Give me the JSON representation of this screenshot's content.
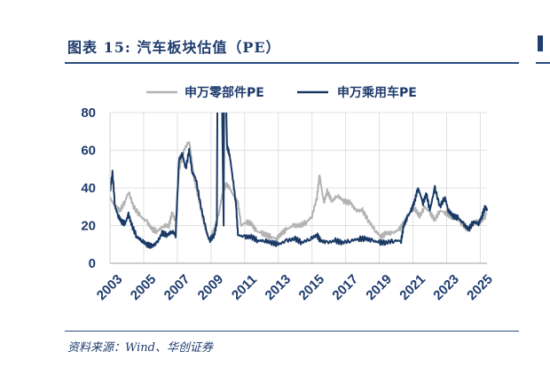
{
  "title": "图表 15:  汽车板块估值（PE）",
  "source": "资料来源：Wind、华创证券",
  "chart_data": {
    "type": "line",
    "title": "汽车板块估值（PE）",
    "xlabel": "",
    "ylabel": "",
    "ylim": [
      0,
      80
    ],
    "xlim": [
      2003,
      2025.4
    ],
    "yticks": [
      0,
      20,
      40,
      60,
      80
    ],
    "xticks": [
      "2003",
      "2005",
      "2007",
      "2009",
      "2011",
      "2013",
      "2015",
      "2017",
      "2019",
      "2021",
      "2023",
      "2025"
    ],
    "grid": true,
    "legend": "top",
    "series": [
      {
        "name": "申万零部件PE",
        "color": "#b3b3b3",
        "x": [
          2003.0,
          2003.3,
          2003.6,
          2003.9,
          2004.1,
          2004.4,
          2004.8,
          2005.2,
          2005.5,
          2005.8,
          2006.2,
          2006.5,
          2006.7,
          2006.9,
          2007.1,
          2007.4,
          2007.7,
          2008.0,
          2008.3,
          2008.6,
          2008.9,
          2009.2,
          2009.5,
          2009.7,
          2009.9,
          2010.1,
          2010.4,
          2010.6,
          2010.8,
          2011.1,
          2011.4,
          2011.7,
          2012.0,
          2012.3,
          2012.6,
          2012.9,
          2013.2,
          2013.5,
          2013.9,
          2014.3,
          2014.7,
          2015.0,
          2015.3,
          2015.45,
          2015.7,
          2015.9,
          2016.2,
          2016.5,
          2016.9,
          2017.3,
          2017.6,
          2018.0,
          2018.4,
          2018.8,
          2019.1,
          2019.4,
          2019.8,
          2020.2,
          2020.5,
          2020.8,
          2021.1,
          2021.4,
          2021.7,
          2022.0,
          2022.3,
          2022.6,
          2022.9,
          2023.2,
          2023.5,
          2023.8,
          2024.1,
          2024.4,
          2024.7,
          2025.0,
          2025.4
        ],
        "y": [
          35,
          30,
          28,
          33,
          38,
          30,
          25,
          22,
          18,
          17,
          20,
          20,
          27,
          22,
          50,
          60,
          65,
          45,
          33,
          20,
          12,
          18,
          28,
          38,
          42,
          40,
          35,
          32,
          20,
          22,
          21,
          17,
          16,
          15,
          14,
          13,
          16,
          18,
          20,
          20,
          22,
          25,
          35,
          47,
          32,
          38,
          33,
          36,
          33,
          32,
          28,
          28,
          22,
          17,
          14,
          16,
          16,
          18,
          22,
          27,
          29,
          25,
          30,
          27,
          23,
          28,
          27,
          25,
          24,
          22,
          19,
          18,
          22,
          22,
          26
        ]
      },
      {
        "name": "申万乘用车PE",
        "color": "#1a3a66",
        "x": [
          2003.0,
          2003.15,
          2003.3,
          2003.5,
          2003.7,
          2003.9,
          2004.1,
          2004.3,
          2004.6,
          2004.9,
          2005.2,
          2005.5,
          2005.8,
          2006.1,
          2006.4,
          2006.7,
          2006.9,
          2007.1,
          2007.3,
          2007.5,
          2007.7,
          2007.9,
          2008.1,
          2008.4,
          2008.7,
          2008.9,
          2009.2,
          2009.35,
          2009.4,
          2009.6,
          2009.75,
          2009.8,
          2009.95,
          2010.1,
          2010.3,
          2010.5,
          2010.6,
          2011.0,
          2011.4,
          2011.8,
          2012.2,
          2012.6,
          2013.0,
          2013.5,
          2014.0,
          2014.4,
          2014.9,
          2015.3,
          2015.5,
          2015.9,
          2016.4,
          2016.8,
          2017.3,
          2017.8,
          2018.2,
          2018.6,
          2019.0,
          2019.4,
          2019.9,
          2020.3,
          2020.45,
          2020.7,
          2020.9,
          2021.1,
          2021.3,
          2021.6,
          2021.8,
          2022.0,
          2022.3,
          2022.6,
          2022.9,
          2023.1,
          2023.4,
          2023.7,
          2024.0,
          2024.3,
          2024.6,
          2024.9,
          2025.1,
          2025.3,
          2025.4
        ],
        "y": [
          38,
          48,
          30,
          25,
          22,
          21,
          26,
          20,
          14,
          12,
          10,
          9,
          11,
          16,
          15,
          17,
          15,
          55,
          58,
          50,
          60,
          48,
          45,
          30,
          18,
          12,
          15,
          22,
          130,
          130,
          20,
          130,
          62,
          58,
          45,
          30,
          15,
          14,
          14,
          12,
          12,
          11,
          10,
          12,
          13,
          11,
          13,
          15,
          12,
          11,
          12,
          11,
          12,
          13,
          13,
          12,
          11,
          11,
          12,
          12,
          20,
          25,
          28,
          33,
          40,
          32,
          37,
          28,
          40,
          30,
          35,
          28,
          25,
          24,
          21,
          18,
          22,
          21,
          25,
          30,
          28
        ]
      }
    ]
  }
}
